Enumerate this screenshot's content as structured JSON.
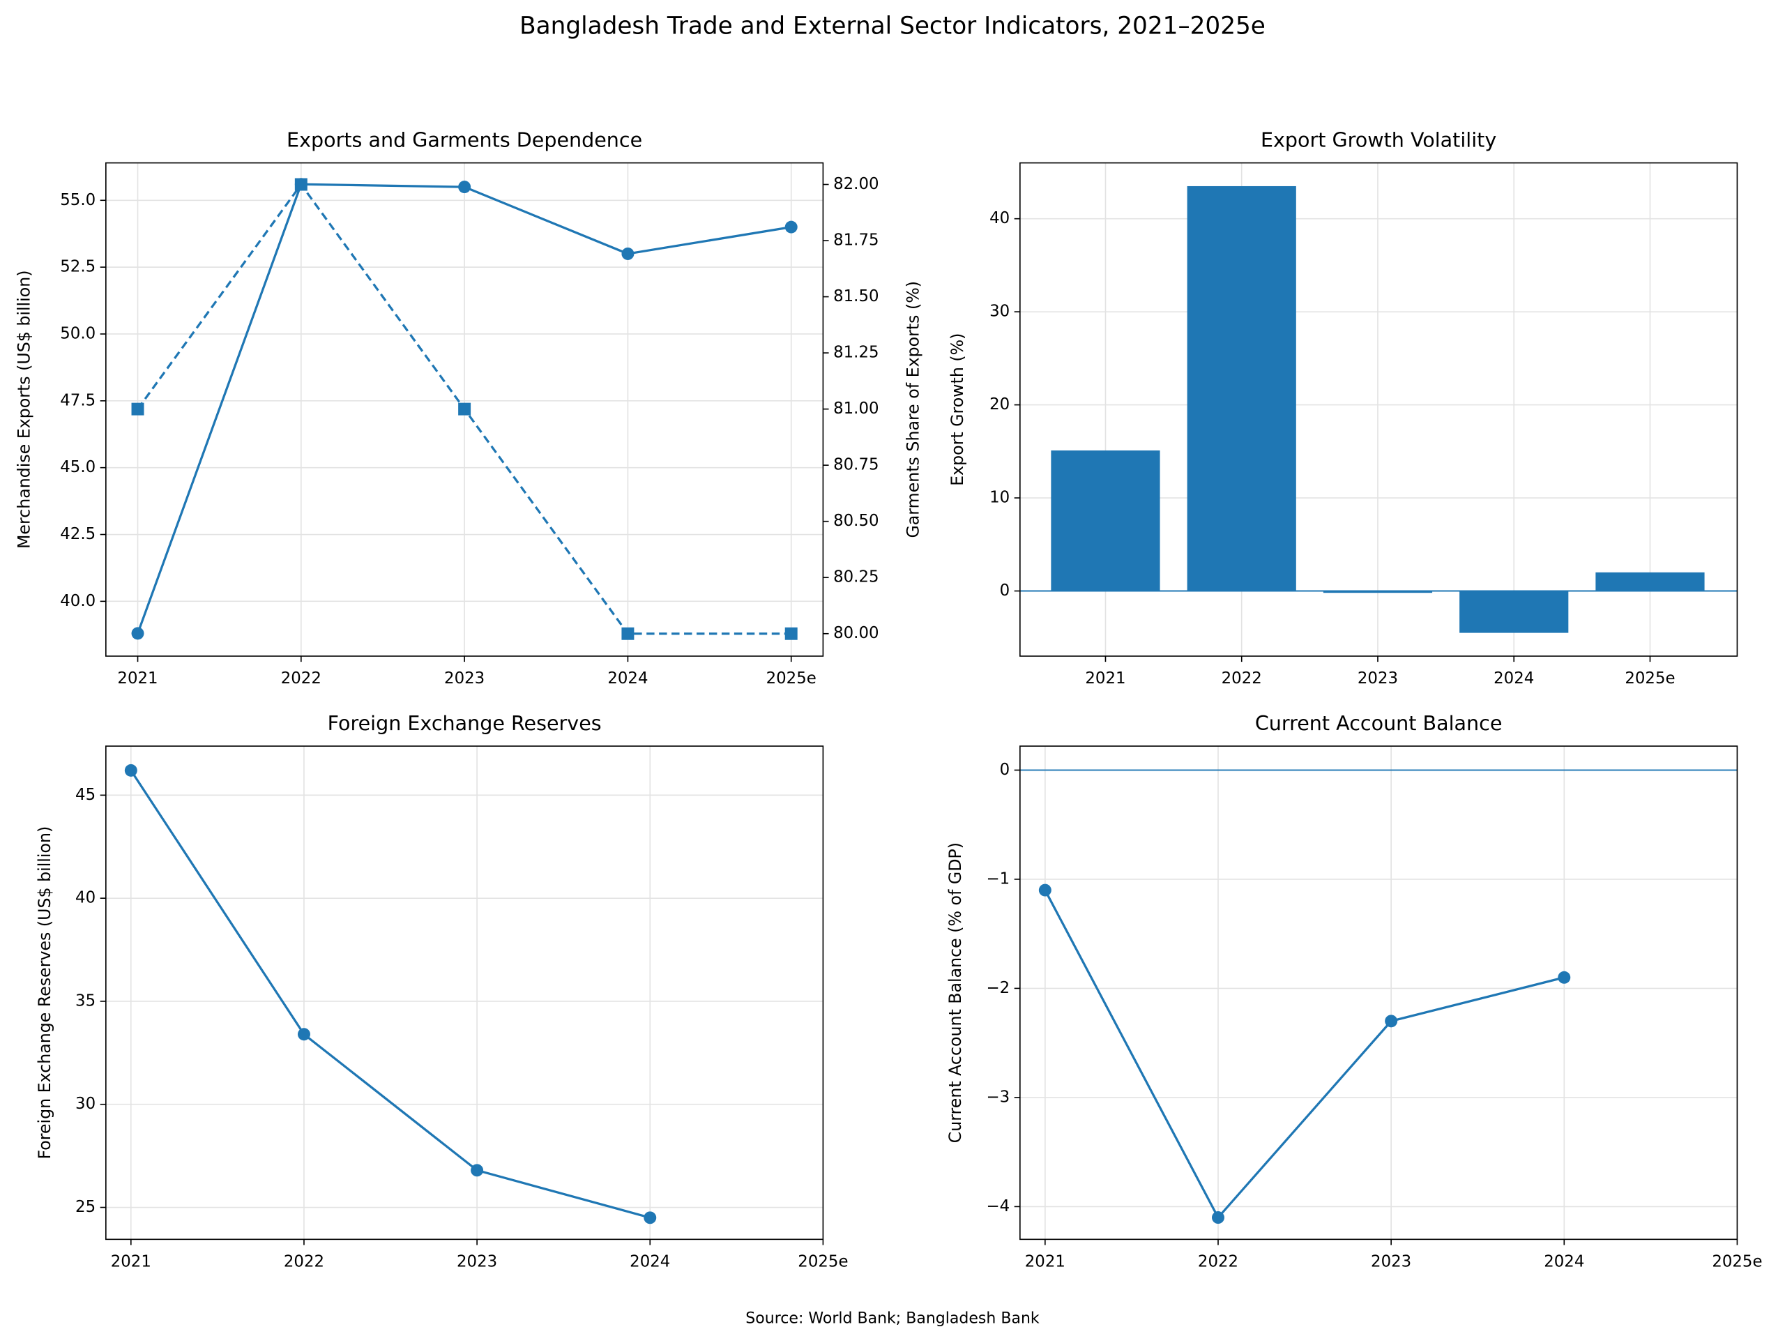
{
  "title": "Bangladesh Trade and External Sector Indicators, 2021–2025e",
  "source": "Source: World Bank; Bangladesh Bank",
  "chart_data": [
    {
      "type": "line",
      "title": "Exports and Garments Dependence",
      "categories": [
        "2021",
        "2022",
        "2023",
        "2024",
        "2025e"
      ],
      "xlim": [
        -0.195,
        4.195
      ],
      "ylabel": "Merchandise Exports (US$ billion)",
      "y2label": "Garments Share of Exports (%)",
      "ylim": [
        37.95,
        56.4
      ],
      "yticks": [
        {
          "value": 40,
          "label": "40.0"
        },
        {
          "value": 42.5,
          "label": "42.5"
        },
        {
          "value": 45,
          "label": "45.0"
        },
        {
          "value": 47.5,
          "label": "47.5"
        },
        {
          "value": 50,
          "label": "50.0"
        },
        {
          "value": 52.5,
          "label": "52.5"
        },
        {
          "value": 55,
          "label": "55.0"
        }
      ],
      "y2lim": [
        79.9,
        82.096
      ],
      "y2ticks": [
        {
          "value": 80,
          "label": "80.00"
        },
        {
          "value": 80.25,
          "label": "80.25"
        },
        {
          "value": 80.5,
          "label": "80.50"
        },
        {
          "value": 80.75,
          "label": "80.75"
        },
        {
          "value": 81,
          "label": "81.00"
        },
        {
          "value": 81.25,
          "label": "81.25"
        },
        {
          "value": 81.5,
          "label": "81.50"
        },
        {
          "value": 81.75,
          "label": "81.75"
        },
        {
          "value": 82,
          "label": "82.00"
        }
      ],
      "grid": true,
      "series": [
        {
          "color": "#1f77b4",
          "marker": "circle",
          "linestyle": "solid",
          "values": [
            38.8,
            55.6,
            55.5,
            53.0,
            54.0
          ]
        },
        {
          "color": "#1f77b4",
          "marker": "square",
          "linestyle": "dashed",
          "axis": "y2",
          "values": [
            81.0,
            82.0,
            81.0,
            80.0,
            80.0
          ]
        }
      ]
    },
    {
      "type": "bar",
      "title": "Export Growth Volatility",
      "categories": [
        "2021",
        "2022",
        "2023",
        "2024",
        "2025e"
      ],
      "xlim": [
        -0.628,
        4.64
      ],
      "ylabel": "Export Growth (%)",
      "ylim": [
        -7.0,
        46.0
      ],
      "yticks": [
        0,
        10,
        20,
        30,
        40
      ],
      "grid": true,
      "color": "#1f77b4",
      "reference_line": 0,
      "values": [
        15.1,
        43.5,
        -0.2,
        -4.5,
        2.0
      ]
    },
    {
      "type": "line",
      "title": "Foreign Exchange Reserves",
      "categories": [
        "2021",
        "2022",
        "2023",
        "2024",
        "2025e"
      ],
      "xlim": [
        -0.145,
        4.0
      ],
      "ylabel": "Foreign Exchange Reserves (US$ billion)",
      "ylim": [
        23.45,
        47.38
      ],
      "yticks": [
        25,
        30,
        35,
        40,
        45
      ],
      "grid": true,
      "series": [
        {
          "color": "#1f77b4",
          "marker": "circle",
          "linestyle": "solid",
          "values": [
            46.2,
            33.4,
            26.8,
            24.5,
            null
          ]
        }
      ]
    },
    {
      "type": "line",
      "title": "Current Account Balance",
      "categories": [
        "2021",
        "2022",
        "2023",
        "2024",
        "2025e"
      ],
      "xlim": [
        -0.145,
        4.0
      ],
      "ylabel": "Current Account Balance (% of GDP)",
      "ylim": [
        -4.3,
        0.22
      ],
      "yticks": [
        {
          "value": -4,
          "label": "−4"
        },
        {
          "value": -3,
          "label": "−3"
        },
        {
          "value": -2,
          "label": "−2"
        },
        {
          "value": -1,
          "label": "−1"
        },
        0
      ],
      "grid": true,
      "reference_line": 0,
      "series": [
        {
          "color": "#1f77b4",
          "marker": "circle",
          "linestyle": "solid",
          "values": [
            -1.1,
            -4.1,
            -2.3,
            -1.9,
            null
          ]
        }
      ]
    }
  ]
}
